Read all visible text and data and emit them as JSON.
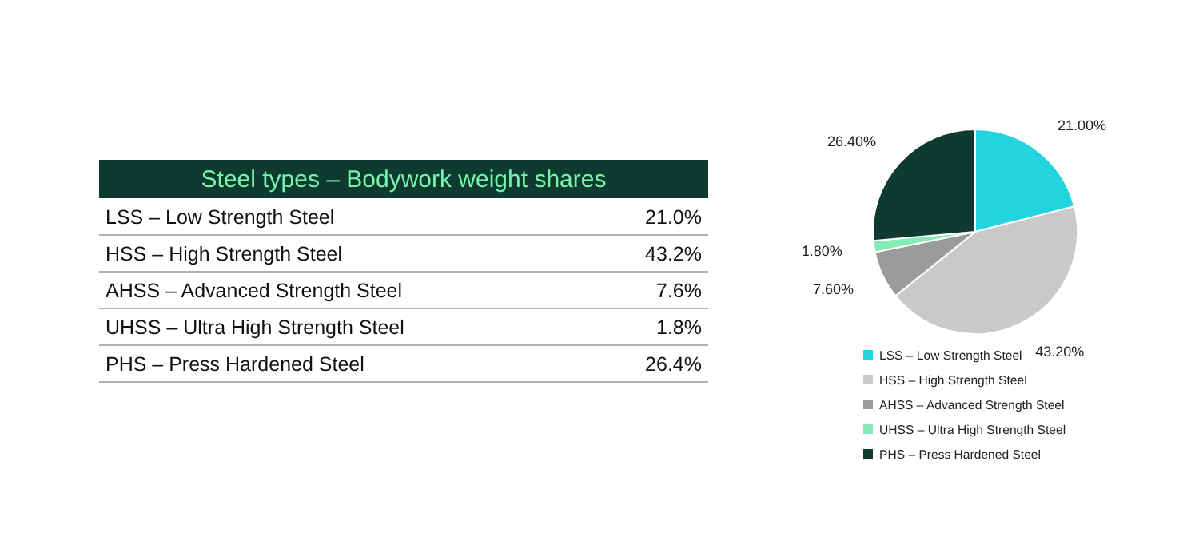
{
  "chart_data": [
    {
      "type": "other",
      "title": "Steel types – Bodywork weight shares",
      "categories": [
        "LSS – Low Strength Steel",
        "HSS – High Strength Steel",
        "AHSS – Advanced Strength Steel",
        "UHSS – Ultra High Strength Steel",
        "PHS – Press Hardened Steel"
      ],
      "value_labels": [
        "21.0%",
        "43.2%",
        "7.6%",
        "1.8%",
        "26.4%"
      ]
    },
    {
      "type": "pie",
      "categories": [
        "LSS – Low Strength Steel",
        "HSS – High Strength Steel",
        "AHSS – Advanced Strength Steel",
        "UHSS – Ultra High Strength Steel",
        "PHS – Press Hardened Steel"
      ],
      "values": [
        21.0,
        43.2,
        7.6,
        1.8,
        26.4
      ],
      "value_labels": [
        "21.00%",
        "43.20%",
        "7.60%",
        "1.80%",
        "26.40%"
      ],
      "colors": [
        "#22d4de",
        "#c9c9c9",
        "#9b9b9b",
        "#84ebb4",
        "#0e3b30"
      ],
      "legend": "bottom"
    }
  ]
}
